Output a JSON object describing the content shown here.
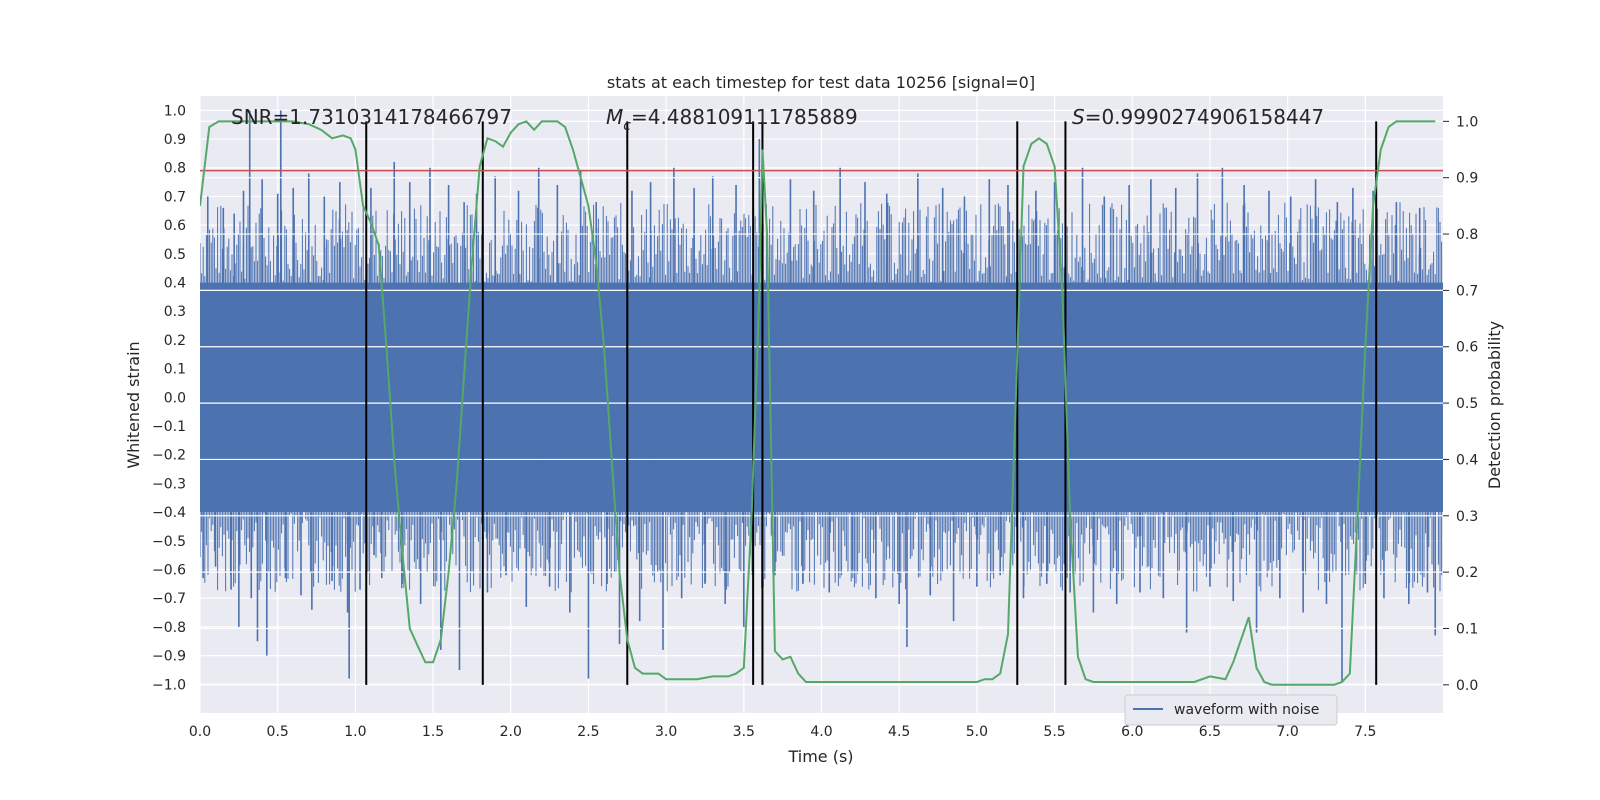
{
  "chart_data": {
    "type": "line",
    "title": "stats at each timestep for test data 10256 [signal=0]",
    "xlabel": "Time (s)",
    "ylabel_left": "Whitened strain",
    "ylabel_right": "Detection probability",
    "xlim": [
      0.0,
      8.0
    ],
    "ylim_left": [
      -1.1,
      1.05
    ],
    "ylim_right": [
      -0.05,
      1.045
    ],
    "x_ticks": [
      "0.0",
      "0.5",
      "1.0",
      "1.5",
      "2.0",
      "2.5",
      "3.0",
      "3.5",
      "4.0",
      "4.5",
      "5.0",
      "5.5",
      "6.0",
      "6.5",
      "7.0",
      "7.5"
    ],
    "y_ticks_left": [
      "1.0",
      "0.9",
      "0.8",
      "0.7",
      "0.6",
      "0.5",
      "0.4",
      "0.3",
      "0.2",
      "0.1",
      "0.0",
      "−0.1",
      "−0.2",
      "−0.3",
      "−0.4",
      "−0.5",
      "−0.6",
      "−0.7",
      "−0.8",
      "−0.9",
      "−1.0"
    ],
    "y_ticks_right": [
      "1.0",
      "0.9",
      "0.8",
      "0.7",
      "0.6",
      "0.5",
      "0.4",
      "0.3",
      "0.2",
      "0.1",
      "0.0"
    ],
    "grid": true,
    "legend": {
      "location": "lower-right",
      "entries": [
        "waveform with noise"
      ]
    },
    "annotations": {
      "snr": "SNR=1.7310314178466797",
      "mc_symbol": "M",
      "mc_sub": "c",
      "mc_value": "=4.488109111785889",
      "s_symbol": "S",
      "s_value": "=0.9990274906158447"
    },
    "threshold": {
      "value": 0.79,
      "axis": "left",
      "color": "#c44e52"
    },
    "vertical_lines_x": [
      1.07,
      1.82,
      2.75,
      3.56,
      3.62,
      5.26,
      5.57,
      7.57
    ],
    "waveform": {
      "name": "waveform with noise",
      "color": "#4c72b0",
      "dense_band": [
        -0.4,
        0.4
      ],
      "spikes": [
        {
          "x": 0.02,
          "y": -0.63
        },
        {
          "x": 0.05,
          "y": 0.7
        },
        {
          "x": 0.1,
          "y": -0.59
        },
        {
          "x": 0.15,
          "y": 0.66
        },
        {
          "x": 0.2,
          "y": -0.67
        },
        {
          "x": 0.22,
          "y": 0.64
        },
        {
          "x": 0.25,
          "y": -0.8
        },
        {
          "x": 0.28,
          "y": 0.72
        },
        {
          "x": 0.32,
          "y": 1.0
        },
        {
          "x": 0.33,
          "y": -0.7
        },
        {
          "x": 0.37,
          "y": -0.85
        },
        {
          "x": 0.4,
          "y": 0.76
        },
        {
          "x": 0.43,
          "y": -0.9
        },
        {
          "x": 0.5,
          "y": 0.71
        },
        {
          "x": 0.52,
          "y": 1.0
        },
        {
          "x": 0.55,
          "y": -0.63
        },
        {
          "x": 0.6,
          "y": 0.73
        },
        {
          "x": 0.65,
          "y": -0.69
        },
        {
          "x": 0.7,
          "y": 0.78
        },
        {
          "x": 0.72,
          "y": -0.74
        },
        {
          "x": 0.8,
          "y": 0.7
        },
        {
          "x": 0.85,
          "y": -0.64
        },
        {
          "x": 0.9,
          "y": 0.75
        },
        {
          "x": 0.95,
          "y": -0.75
        },
        {
          "x": 0.96,
          "y": -0.98
        },
        {
          "x": 1.03,
          "y": -0.67
        },
        {
          "x": 1.1,
          "y": 0.73
        },
        {
          "x": 1.12,
          "y": -0.55
        },
        {
          "x": 1.17,
          "y": -0.63
        },
        {
          "x": 1.25,
          "y": 0.82
        },
        {
          "x": 1.3,
          "y": -0.65
        },
        {
          "x": 1.35,
          "y": 0.75
        },
        {
          "x": 1.42,
          "y": -0.72
        },
        {
          "x": 1.48,
          "y": 0.8
        },
        {
          "x": 1.55,
          "y": -0.88
        },
        {
          "x": 1.6,
          "y": 0.74
        },
        {
          "x": 1.67,
          "y": -0.95
        },
        {
          "x": 1.7,
          "y": 0.68
        },
        {
          "x": 1.78,
          "y": 0.71
        },
        {
          "x": 1.85,
          "y": -0.68
        },
        {
          "x": 1.9,
          "y": 0.77
        },
        {
          "x": 1.97,
          "y": -0.62
        },
        {
          "x": 2.05,
          "y": 0.72
        },
        {
          "x": 2.1,
          "y": -0.73
        },
        {
          "x": 2.18,
          "y": 0.8
        },
        {
          "x": 2.25,
          "y": -0.66
        },
        {
          "x": 2.3,
          "y": 0.74
        },
        {
          "x": 2.38,
          "y": -0.75
        },
        {
          "x": 2.45,
          "y": 0.79
        },
        {
          "x": 2.5,
          "y": -0.98
        },
        {
          "x": 2.55,
          "y": 0.68
        },
        {
          "x": 2.62,
          "y": -0.65
        },
        {
          "x": 2.7,
          "y": -0.86
        },
        {
          "x": 2.78,
          "y": 0.72
        },
        {
          "x": 2.83,
          "y": -0.78
        },
        {
          "x": 2.9,
          "y": 0.75
        },
        {
          "x": 2.98,
          "y": -0.88
        },
        {
          "x": 3.05,
          "y": 0.8
        },
        {
          "x": 3.1,
          "y": -0.7
        },
        {
          "x": 3.18,
          "y": 0.73
        },
        {
          "x": 3.25,
          "y": -0.65
        },
        {
          "x": 3.3,
          "y": 0.77
        },
        {
          "x": 3.38,
          "y": -0.72
        },
        {
          "x": 3.45,
          "y": 0.74
        },
        {
          "x": 3.5,
          "y": -0.8
        },
        {
          "x": 3.6,
          "y": 0.9
        },
        {
          "x": 3.7,
          "y": -0.62
        },
        {
          "x": 3.8,
          "y": 0.76
        },
        {
          "x": 3.88,
          "y": -0.65
        },
        {
          "x": 3.95,
          "y": 0.72
        },
        {
          "x": 4.05,
          "y": -0.68
        },
        {
          "x": 4.12,
          "y": 0.8
        },
        {
          "x": 4.2,
          "y": -0.6
        },
        {
          "x": 4.28,
          "y": 0.75
        },
        {
          "x": 4.35,
          "y": -0.7
        },
        {
          "x": 4.42,
          "y": 0.71
        },
        {
          "x": 4.5,
          "y": -0.72
        },
        {
          "x": 4.55,
          "y": -0.87
        },
        {
          "x": 4.62,
          "y": 0.78
        },
        {
          "x": 4.7,
          "y": -0.69
        },
        {
          "x": 4.78,
          "y": 0.73
        },
        {
          "x": 4.85,
          "y": -0.78
        },
        {
          "x": 4.92,
          "y": 0.7
        },
        {
          "x": 5.0,
          "y": -0.66
        },
        {
          "x": 5.08,
          "y": 0.76
        },
        {
          "x": 5.15,
          "y": -0.62
        },
        {
          "x": 5.2,
          "y": 0.74
        },
        {
          "x": 5.3,
          "y": -0.7
        },
        {
          "x": 5.38,
          "y": 0.72
        },
        {
          "x": 5.45,
          "y": -0.65
        },
        {
          "x": 5.5,
          "y": 0.75
        },
        {
          "x": 5.6,
          "y": -0.68
        },
        {
          "x": 5.68,
          "y": 0.8
        },
        {
          "x": 5.75,
          "y": -0.75
        },
        {
          "x": 5.82,
          "y": 0.7
        },
        {
          "x": 5.9,
          "y": -0.72
        },
        {
          "x": 5.98,
          "y": 0.74
        },
        {
          "x": 6.05,
          "y": -0.68
        },
        {
          "x": 6.12,
          "y": 0.76
        },
        {
          "x": 6.2,
          "y": -0.7
        },
        {
          "x": 6.28,
          "y": 0.73
        },
        {
          "x": 6.35,
          "y": -0.82
        },
        {
          "x": 6.42,
          "y": 0.78
        },
        {
          "x": 6.5,
          "y": -0.66
        },
        {
          "x": 6.58,
          "y": 0.8
        },
        {
          "x": 6.65,
          "y": -0.71
        },
        {
          "x": 6.72,
          "y": 0.74
        },
        {
          "x": 6.8,
          "y": -0.82
        },
        {
          "x": 6.88,
          "y": 0.72
        },
        {
          "x": 6.95,
          "y": -0.7
        },
        {
          "x": 7.02,
          "y": 0.7
        },
        {
          "x": 7.1,
          "y": -0.75
        },
        {
          "x": 7.18,
          "y": 0.76
        },
        {
          "x": 7.25,
          "y": -0.72
        },
        {
          "x": 7.32,
          "y": 0.68
        },
        {
          "x": 7.35,
          "y": -0.99
        },
        {
          "x": 7.42,
          "y": 0.73
        },
        {
          "x": 7.5,
          "y": -0.65
        },
        {
          "x": 7.55,
          "y": 0.72
        },
        {
          "x": 7.62,
          "y": -0.7
        },
        {
          "x": 7.7,
          "y": 0.68
        },
        {
          "x": 7.78,
          "y": -0.72
        },
        {
          "x": 7.85,
          "y": 0.66
        },
        {
          "x": 7.9,
          "y": -0.68
        },
        {
          "x": 7.95,
          "y": -0.83
        }
      ]
    },
    "detection_probability": {
      "color": "#55a868",
      "x": [
        0.0,
        0.06,
        0.12,
        0.2,
        0.3,
        0.4,
        0.5,
        0.6,
        0.7,
        0.78,
        0.85,
        0.92,
        0.97,
        1.0,
        1.05,
        1.1,
        1.15,
        1.2,
        1.25,
        1.3,
        1.35,
        1.4,
        1.45,
        1.5,
        1.55,
        1.6,
        1.65,
        1.7,
        1.75,
        1.8,
        1.85,
        1.9,
        1.95,
        2.0,
        2.05,
        2.1,
        2.15,
        2.2,
        2.25,
        2.3,
        2.35,
        2.4,
        2.45,
        2.5,
        2.55,
        2.6,
        2.65,
        2.7,
        2.75,
        2.8,
        2.85,
        2.9,
        2.95,
        3.0,
        3.1,
        3.2,
        3.3,
        3.4,
        3.45,
        3.5,
        3.55,
        3.6,
        3.62,
        3.65,
        3.7,
        3.75,
        3.8,
        3.85,
        3.9,
        3.95,
        4.0,
        4.2,
        4.4,
        4.6,
        4.8,
        5.0,
        5.05,
        5.1,
        5.15,
        5.2,
        5.25,
        5.3,
        5.35,
        5.4,
        5.45,
        5.5,
        5.55,
        5.6,
        5.65,
        5.7,
        5.75,
        5.8,
        5.9,
        6.0,
        6.1,
        6.2,
        6.3,
        6.4,
        6.5,
        6.6,
        6.65,
        6.7,
        6.75,
        6.8,
        6.85,
        6.9,
        7.0,
        7.1,
        7.2,
        7.3,
        7.35,
        7.4,
        7.45,
        7.5,
        7.55,
        7.6,
        7.65,
        7.7,
        7.75,
        7.8,
        7.85,
        7.9,
        7.95
      ],
      "y": [
        0.85,
        0.99,
        1.0,
        1.0,
        1.0,
        1.0,
        1.0,
        1.0,
        0.995,
        0.985,
        0.97,
        0.975,
        0.97,
        0.95,
        0.85,
        0.82,
        0.78,
        0.6,
        0.4,
        0.24,
        0.1,
        0.07,
        0.04,
        0.04,
        0.08,
        0.2,
        0.35,
        0.55,
        0.75,
        0.92,
        0.97,
        0.965,
        0.955,
        0.98,
        0.995,
        1.0,
        0.985,
        1.0,
        1.0,
        1.0,
        0.99,
        0.95,
        0.9,
        0.85,
        0.75,
        0.6,
        0.4,
        0.2,
        0.08,
        0.03,
        0.02,
        0.02,
        0.02,
        0.01,
        0.01,
        0.01,
        0.015,
        0.015,
        0.02,
        0.03,
        0.3,
        0.7,
        0.95,
        0.8,
        0.06,
        0.045,
        0.05,
        0.02,
        0.005,
        0.005,
        0.005,
        0.005,
        0.005,
        0.005,
        0.005,
        0.005,
        0.01,
        0.01,
        0.02,
        0.09,
        0.5,
        0.92,
        0.96,
        0.97,
        0.96,
        0.92,
        0.7,
        0.3,
        0.05,
        0.01,
        0.005,
        0.005,
        0.005,
        0.005,
        0.005,
        0.005,
        0.005,
        0.005,
        0.015,
        0.01,
        0.04,
        0.08,
        0.12,
        0.03,
        0.005,
        0.0,
        0.0,
        0.0,
        0.0,
        0.0,
        0.005,
        0.02,
        0.3,
        0.6,
        0.85,
        0.95,
        0.99,
        1.0,
        1.0,
        1.0,
        1.0,
        1.0,
        1.0
      ]
    }
  }
}
